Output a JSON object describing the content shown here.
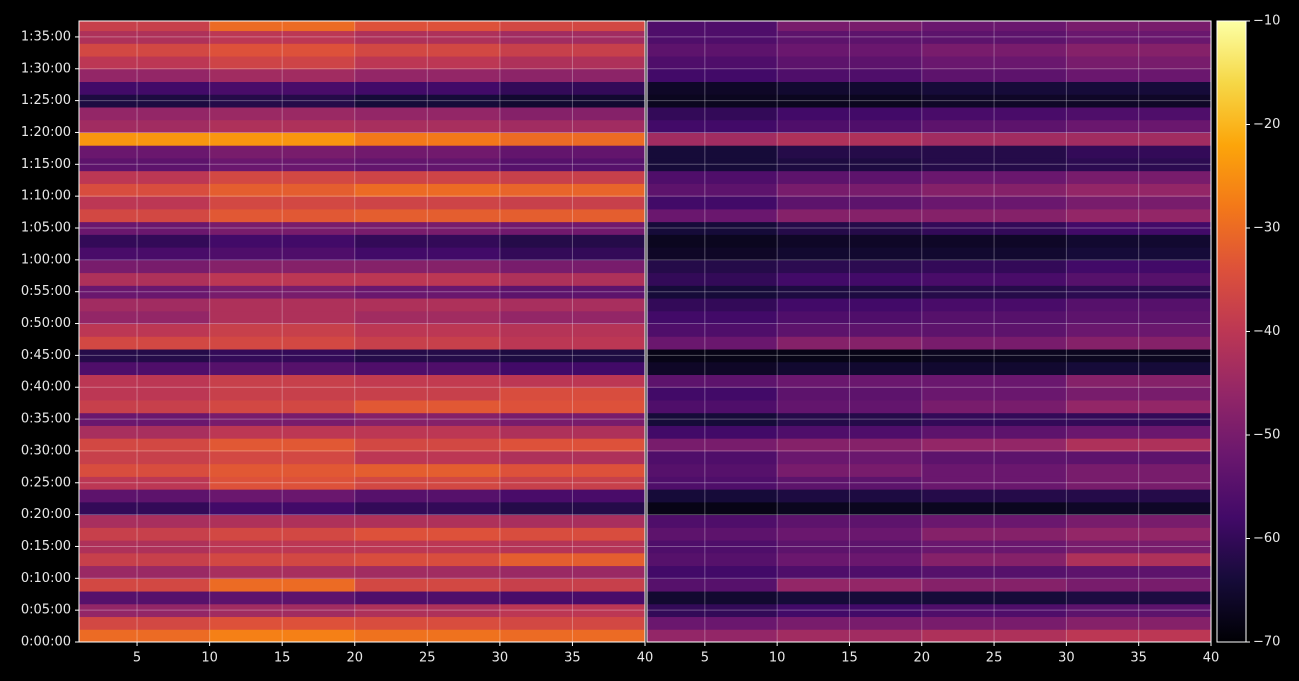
{
  "chart_data": {
    "type": "heatmap",
    "colormap": "inferno",
    "grid": true,
    "ylim": [
      0,
      5850
    ],
    "yticks": [
      {
        "value": 0,
        "label": "0:00:00"
      },
      {
        "value": 300,
        "label": "0:05:00"
      },
      {
        "value": 600,
        "label": "0:10:00"
      },
      {
        "value": 900,
        "label": "0:15:00"
      },
      {
        "value": 1200,
        "label": "0:20:00"
      },
      {
        "value": 1500,
        "label": "0:25:00"
      },
      {
        "value": 1800,
        "label": "0:30:00"
      },
      {
        "value": 2100,
        "label": "0:35:00"
      },
      {
        "value": 2400,
        "label": "0:40:00"
      },
      {
        "value": 2700,
        "label": "0:45:00"
      },
      {
        "value": 3000,
        "label": "0:50:00"
      },
      {
        "value": 3300,
        "label": "0:55:00"
      },
      {
        "value": 3600,
        "label": "1:00:00"
      },
      {
        "value": 3900,
        "label": "1:05:00"
      },
      {
        "value": 4200,
        "label": "1:10:00"
      },
      {
        "value": 4500,
        "label": "1:15:00"
      },
      {
        "value": 4800,
        "label": "1:20:00"
      },
      {
        "value": 5100,
        "label": "1:25:00"
      },
      {
        "value": 5400,
        "label": "1:30:00"
      },
      {
        "value": 5700,
        "label": "1:35:00"
      }
    ],
    "ybins": [
      0,
      120,
      240,
      360,
      480,
      600,
      720,
      840,
      960,
      1080,
      1200,
      1320,
      1440,
      1560,
      1680,
      1800,
      1920,
      2040,
      2160,
      2280,
      2400,
      2520,
      2640,
      2760,
      2880,
      3000,
      3120,
      3240,
      3360,
      3480,
      3600,
      3720,
      3840,
      3960,
      4080,
      4200,
      4320,
      4440,
      4560,
      4680,
      4800,
      4920,
      5040,
      5160,
      5280,
      5400,
      5520,
      5640,
      5760,
      5880
    ],
    "colorbar": {
      "lim": [
        -70,
        -10
      ],
      "ticks": [
        {
          "value": -10,
          "label": "−10"
        },
        {
          "value": -20,
          "label": "−20"
        },
        {
          "value": -30,
          "label": "−30"
        },
        {
          "value": -40,
          "label": "−40"
        },
        {
          "value": -50,
          "label": "−50"
        },
        {
          "value": -60,
          "label": "−60"
        },
        {
          "value": -70,
          "label": "−70"
        }
      ]
    },
    "panels": [
      {
        "xlim": [
          1,
          40
        ],
        "xticks": [
          5,
          10,
          15,
          20,
          25,
          30,
          35,
          40
        ],
        "xbins": [
          1,
          10,
          20,
          30,
          40
        ],
        "values": [
          [
            -30,
            -27,
            -29,
            -30
          ],
          [
            -36,
            -34,
            -35,
            -36
          ],
          [
            -46,
            -44,
            -42,
            -40
          ],
          [
            -55,
            -54,
            -56,
            -57
          ],
          [
            -36,
            -30,
            -36,
            -38
          ],
          [
            -45,
            -43,
            -44,
            -45
          ],
          [
            -38,
            -36,
            -35,
            -32
          ],
          [
            -42,
            -40,
            -40,
            -41
          ],
          [
            -38,
            -36,
            -34,
            -35
          ],
          [
            -43,
            -42,
            -42,
            -43
          ],
          [
            -60,
            -58,
            -60,
            -62
          ],
          [
            -54,
            -52,
            -55,
            -57
          ],
          [
            -40,
            -34,
            -36,
            -38
          ],
          [
            -35,
            -33,
            -32,
            -34
          ],
          [
            -38,
            -36,
            -40,
            -42
          ],
          [
            -36,
            -33,
            -36,
            -34
          ],
          [
            -43,
            -40,
            -40,
            -42
          ],
          [
            -52,
            -50,
            -48,
            -50
          ],
          [
            -38,
            -36,
            -33,
            -34
          ],
          [
            -40,
            -38,
            -38,
            -35
          ],
          [
            -40,
            -38,
            -39,
            -40
          ],
          [
            -56,
            -55,
            -56,
            -58
          ],
          [
            -62,
            -60,
            -62,
            -63
          ],
          [
            -36,
            -36,
            -38,
            -40
          ],
          [
            -40,
            -38,
            -40,
            -41
          ],
          [
            -46,
            -42,
            -44,
            -46
          ],
          [
            -44,
            -42,
            -42,
            -43
          ],
          [
            -52,
            -50,
            -52,
            -54
          ],
          [
            -42,
            -40,
            -40,
            -42
          ],
          [
            -50,
            -48,
            -48,
            -50
          ],
          [
            -57,
            -56,
            -58,
            -60
          ],
          [
            -60,
            -58,
            -60,
            -62
          ],
          [
            -52,
            -50,
            -50,
            -51
          ],
          [
            -36,
            -33,
            -32,
            -32
          ],
          [
            -40,
            -36,
            -37,
            -38
          ],
          [
            -35,
            -32,
            -30,
            -31
          ],
          [
            -40,
            -36,
            -37,
            -38
          ],
          [
            -54,
            -52,
            -53,
            -55
          ],
          [
            -52,
            -50,
            -51,
            -53
          ],
          [
            -24,
            -24,
            -28,
            -30
          ],
          [
            -44,
            -42,
            -43,
            -44
          ],
          [
            -46,
            -45,
            -46,
            -48
          ],
          [
            -63,
            -62,
            -64,
            -65
          ],
          [
            -58,
            -57,
            -58,
            -60
          ],
          [
            -46,
            -44,
            -46,
            -47
          ],
          [
            -40,
            -37,
            -40,
            -42
          ],
          [
            -36,
            -34,
            -36,
            -38
          ],
          [
            -42,
            -40,
            -42,
            -44
          ],
          [
            -38,
            -30,
            -34,
            -36
          ]
        ]
      },
      {
        "xlim": [
          1,
          40
        ],
        "xticks": [
          5,
          10,
          15,
          20,
          25,
          30,
          35,
          40
        ],
        "xbins": [
          1,
          10,
          20,
          30,
          40
        ],
        "values": [
          [
            -46,
            -44,
            -42,
            -40
          ],
          [
            -52,
            -50,
            -50,
            -48
          ],
          [
            -60,
            -58,
            -56,
            -54
          ],
          [
            -65,
            -64,
            -64,
            -63
          ],
          [
            -55,
            -46,
            -48,
            -50
          ],
          [
            -58,
            -56,
            -55,
            -54
          ],
          [
            -55,
            -52,
            -48,
            -42
          ],
          [
            -56,
            -54,
            -52,
            -50
          ],
          [
            -54,
            -52,
            -48,
            -46
          ],
          [
            -56,
            -54,
            -52,
            -50
          ],
          [
            -68,
            -67,
            -67,
            -66
          ],
          [
            -64,
            -63,
            -62,
            -62
          ],
          [
            -56,
            -54,
            -52,
            -50
          ],
          [
            -55,
            -50,
            -52,
            -50
          ],
          [
            -56,
            -52,
            -54,
            -54
          ],
          [
            -50,
            -48,
            -46,
            -42
          ],
          [
            -58,
            -56,
            -54,
            -52
          ],
          [
            -64,
            -62,
            -60,
            -60
          ],
          [
            -56,
            -53,
            -50,
            -46
          ],
          [
            -58,
            -54,
            -52,
            -50
          ],
          [
            -54,
            -52,
            -52,
            -48
          ],
          [
            -66,
            -65,
            -65,
            -64
          ],
          [
            -68,
            -68,
            -67,
            -67
          ],
          [
            -52,
            -48,
            -50,
            -48
          ],
          [
            -56,
            -54,
            -54,
            -52
          ],
          [
            -58,
            -56,
            -55,
            -54
          ],
          [
            -60,
            -58,
            -57,
            -55
          ],
          [
            -64,
            -63,
            -62,
            -61
          ],
          [
            -60,
            -58,
            -57,
            -55
          ],
          [
            -62,
            -61,
            -60,
            -58
          ],
          [
            -66,
            -65,
            -65,
            -64
          ],
          [
            -67,
            -66,
            -66,
            -65
          ],
          [
            -64,
            -62,
            -60,
            -58
          ],
          [
            -52,
            -48,
            -48,
            -46
          ],
          [
            -58,
            -54,
            -52,
            -50
          ],
          [
            -54,
            -50,
            -48,
            -46
          ],
          [
            -56,
            -54,
            -52,
            -50
          ],
          [
            -64,
            -63,
            -62,
            -61
          ],
          [
            -64,
            -62,
            -62,
            -60
          ],
          [
            -44,
            -42,
            -44,
            -44
          ],
          [
            -58,
            -56,
            -54,
            -52
          ],
          [
            -60,
            -58,
            -57,
            -56
          ],
          [
            -67,
            -67,
            -66,
            -66
          ],
          [
            -66,
            -65,
            -64,
            -64
          ],
          [
            -58,
            -56,
            -54,
            -52
          ],
          [
            -56,
            -54,
            -52,
            -50
          ],
          [
            -54,
            -52,
            -50,
            -48
          ],
          [
            -56,
            -54,
            -54,
            -52
          ],
          [
            -56,
            -50,
            -52,
            -50
          ]
        ]
      }
    ]
  }
}
